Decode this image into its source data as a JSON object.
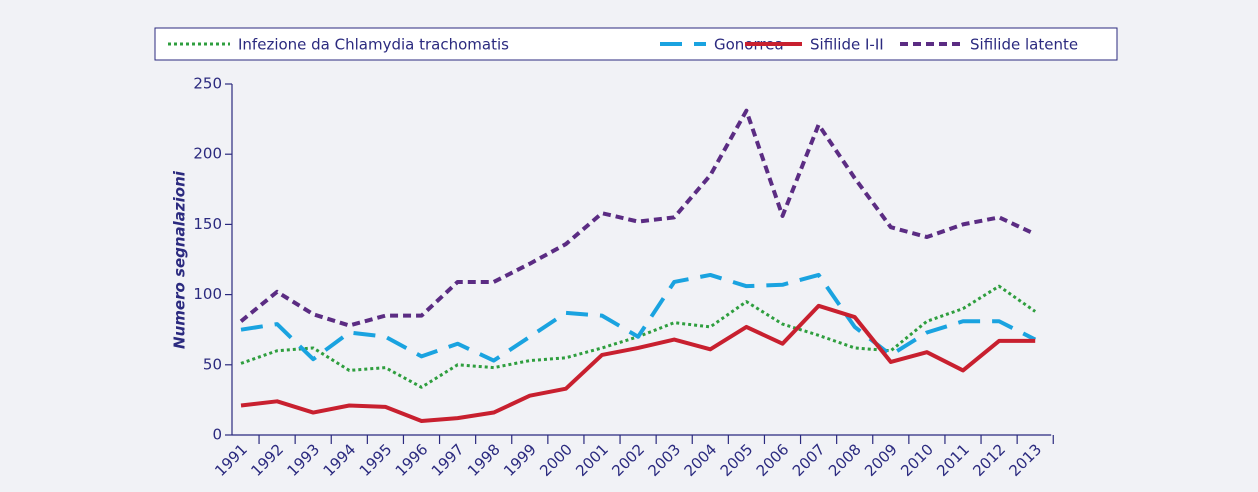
{
  "chart_data": {
    "type": "line",
    "y_label": "Numero segnalazioni",
    "categories": [
      "1991",
      "1992",
      "1993",
      "1994",
      "1995",
      "1996",
      "1997",
      "1998",
      "1999",
      "2000",
      "2001",
      "2002",
      "2003",
      "2004",
      "2005",
      "2006",
      "2007",
      "2008",
      "2009",
      "2010",
      "2011",
      "2012",
      "2013"
    ],
    "ylim": [
      0,
      250
    ],
    "yticks": [
      0,
      50,
      100,
      150,
      200,
      250
    ],
    "series": [
      {
        "name": "Infezione da Chlamydia trachomatis",
        "color": "#2e9e3e",
        "style": "dotted",
        "values": [
          51,
          60,
          62,
          46,
          48,
          34,
          50,
          48,
          53,
          55,
          62,
          70,
          80,
          77,
          95,
          79,
          71,
          62,
          60,
          81,
          90,
          106,
          88
        ]
      },
      {
        "name": "Gonorrea",
        "color": "#1aa3e0",
        "style": "dashed",
        "values": [
          75,
          79,
          54,
          73,
          70,
          56,
          65,
          53,
          70,
          87,
          85,
          70,
          109,
          114,
          106,
          107,
          114,
          77,
          57,
          73,
          81,
          81,
          68
        ]
      },
      {
        "name": "Sifilide I-II",
        "color": "#c8202f",
        "style": "solid",
        "values": [
          21,
          24,
          16,
          21,
          20,
          10,
          12,
          16,
          28,
          33,
          57,
          62,
          68,
          61,
          77,
          65,
          92,
          84,
          52,
          59,
          46,
          67,
          67
        ]
      },
      {
        "name": "Sifilide latente",
        "color": "#5b2c83",
        "style": "dashed-short",
        "values": [
          81,
          102,
          86,
          78,
          85,
          85,
          109,
          109,
          122,
          136,
          158,
          152,
          155,
          185,
          231,
          156,
          221,
          183,
          148,
          141,
          150,
          155,
          143
        ]
      }
    ]
  }
}
